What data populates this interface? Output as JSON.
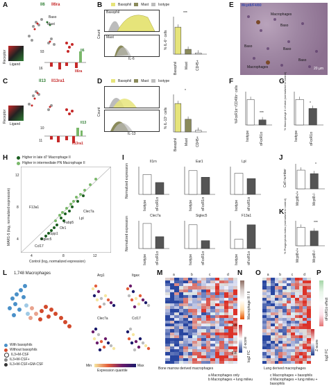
{
  "panels": {
    "A": {
      "label": "A",
      "genes": [
        "Il6",
        "Il6ra"
      ],
      "legend_side": "Receptor",
      "legend_bottom": "Ligand",
      "clusters": [
        "Baso",
        "Mast"
      ],
      "values": [
        "93",
        "16"
      ],
      "bar_label_top": "Il6",
      "bar_label_bottom": "Il6ra"
    },
    "B": {
      "label": "B",
      "legend": [
        "Basophil",
        "Mast",
        "Isotype"
      ],
      "rows": [
        "Basophil",
        "Mast"
      ],
      "xlabel": "IL-6",
      "ylabel": "Count",
      "bar_ylabel": "% IL-6⁺ cells",
      "categories": [
        "Basophil",
        "Mast",
        "CD45+"
      ],
      "values": [
        14,
        2.5,
        0.6
      ],
      "sig": "***"
    },
    "C": {
      "label": "C",
      "genes": [
        "Il13",
        "Il13ra1"
      ],
      "legend_side": "Receptor",
      "legend_bottom": "Ligand",
      "values": [
        "10",
        "11"
      ],
      "bar_label_top": "Il13",
      "bar_label_bottom": "Il13ra1"
    },
    "D": {
      "label": "D",
      "legend": [
        "Basophil",
        "Mast",
        "Isotype"
      ],
      "xlabel": "IL-13",
      "ylabel": "Count",
      "bar_ylabel": "% IL-13⁺ cells",
      "categories": [
        "Basophil",
        "Mast",
        "CD45+"
      ],
      "values": [
        18,
        8,
        1
      ],
      "sig": "*"
    },
    "E": {
      "label": "E",
      "stain": "Mcpt8/F4/80",
      "annotations": [
        "Macrophages",
        "Baso",
        "Baso",
        "Baso",
        "Baso",
        "Macrophages"
      ],
      "scale": "20 µm"
    },
    "F": {
      "label": "F",
      "ylabel": "%FcεR1α⁺/CD49b⁺ cells",
      "categories": [
        "Isotype",
        "αFcεR1α"
      ],
      "values": [
        0.5,
        0.1
      ],
      "sig": "***"
    },
    "G": {
      "label": "G",
      "ylabel": "% Macrophage II of total (normalized to control)",
      "categories": [
        "Isotype",
        "αFcεR1α"
      ],
      "values": [
        1.0,
        0.65
      ],
      "sig": "*"
    },
    "H": {
      "label": "H",
      "legend": [
        "Higher in late d7 Macrophage II",
        "Higher in intermediate PN Macrophage II"
      ],
      "xlabel": "Control (log₂ normalized expression)",
      "ylabel": "MAR1-5 (log₂ normalized expression)",
      "genes": [
        "F13a1",
        "Clec7a",
        "Lpl",
        "Fabp5",
        "Olr1",
        "Spp1",
        "Siglec5",
        "Ccl17"
      ],
      "xticks": [
        "4",
        "8",
        "12"
      ],
      "yticks": [
        "4",
        "8",
        "12"
      ]
    },
    "I": {
      "label": "I",
      "ylabel": "Normalized expression",
      "genes": [
        "Il1rn",
        "Ear1",
        "Lpl",
        "Clec7a",
        "Siglec5",
        "F13a1"
      ],
      "categories": [
        "Isotype",
        "αFcεR1α"
      ]
    },
    "J": {
      "label": "J",
      "ylabel": "Cell number",
      "categories": [
        "Mcpt8+/+",
        "Mcpt8-/-"
      ],
      "values": [
        3.2,
        2.6
      ],
      "sig": "*"
    },
    "K": {
      "label": "K",
      "ylabel": "% Phagocytosis index (normalized to control)",
      "categories": [
        "Mcpt8+/+",
        "Mcpt8-/-"
      ],
      "values": [
        1.0,
        0.8
      ],
      "sig": "***"
    },
    "L": {
      "label": "L",
      "title": "1,748 Macrophages",
      "legend": [
        "With basophils",
        "Without basophils"
      ],
      "conditions": [
        "IL3+M-CSF",
        "IL3+M-CSF+",
        "IL3+M-CSF+GM-CSF"
      ],
      "genes": [
        "Arg1",
        "Itgax",
        "Clec7a",
        "Ccl17"
      ],
      "scale_min": "Min",
      "scale_max": "Max",
      "scale_label": "Expression quantile"
    },
    "M": {
      "label": "M",
      "columns": [
        "a",
        "b",
        "c",
        "d"
      ],
      "caption": "Bone marrow derived macrophages",
      "zlabel": "Z-score",
      "zmin": "-2.8",
      "zmax": "2.8"
    },
    "N": {
      "label": "N",
      "title": "Macrophage III / II",
      "fc_label": "log2 FC"
    },
    "O": {
      "label": "O",
      "columns": [
        "a",
        "b",
        "c",
        "d"
      ],
      "caption": "Lung derived macrophages",
      "zlabel": "Z-score"
    },
    "P": {
      "label": "P",
      "title": "αFcεR1α effect",
      "fc_label": "log2 FC"
    }
  },
  "footnote": {
    "a": "Macrophages only",
    "b": "Macrophages + lung milieu",
    "c": "Macrophages + basophils",
    "d": "Macrophages + lung milieu + basophils"
  },
  "colors": {
    "basophil": "#e6e47a",
    "mast": "#8a8a5a",
    "isotype": "#bcbcbc",
    "dark_bar": "#555555",
    "green": "#2e7d32",
    "light_green": "#7ab86a",
    "red": "#c62828",
    "blue": "#1e3a8a"
  }
}
